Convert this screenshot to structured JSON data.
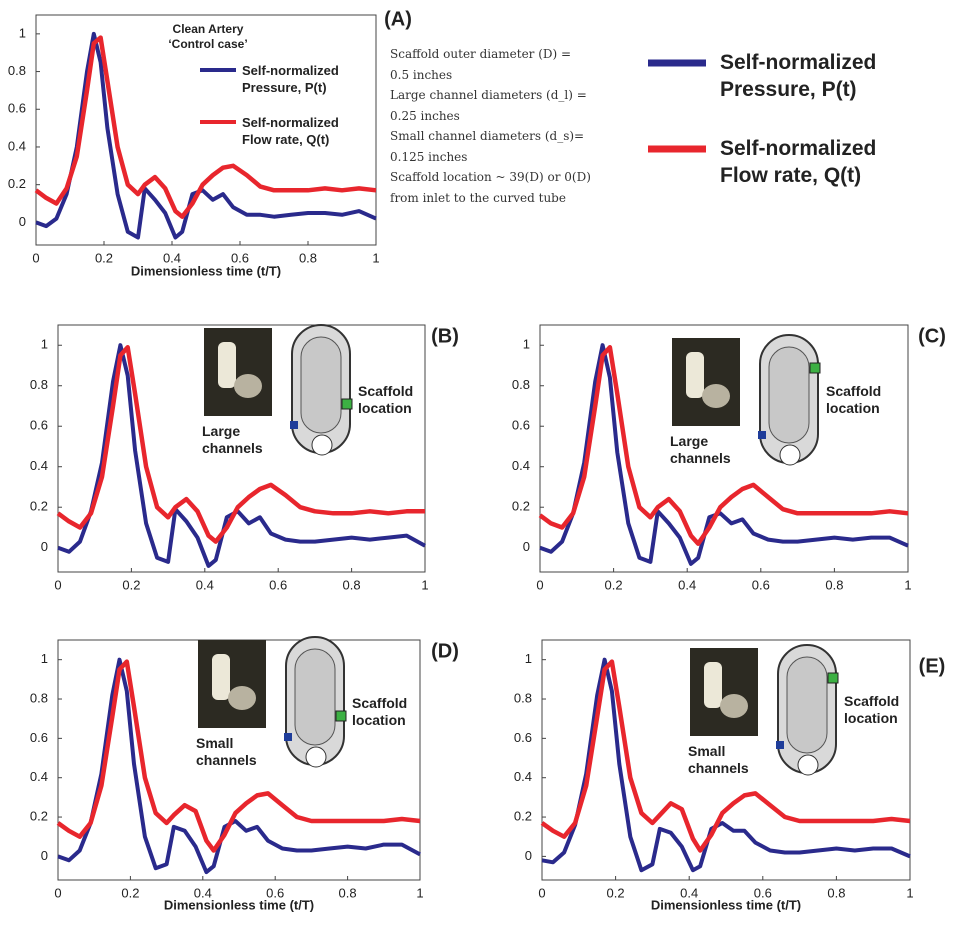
{
  "chart_data": [
    {
      "type": "line",
      "panel_label": "(A)",
      "title": "Clean Artery",
      "subtitle": "‘Control case’",
      "xlabel": "Dimensionless time (t/T)",
      "annotation": [
        "Scaffold outer diameter (D) =",
        "0.5 inches",
        "Large channel diameters (d_l) =",
        "0.25 inches",
        "Small channel diameters (d_s)=",
        "0.125 inches",
        "Scaffold location ~ 39(D)  or 0(D)",
        "from inlet to the curved tube"
      ],
      "legend": "upper right",
      "xlim": [
        0,
        1
      ],
      "ylim": [
        -0.12,
        1.1
      ],
      "xticks": [
        0,
        0.2,
        0.4,
        0.6,
        0.8,
        1
      ],
      "yticks": [
        0,
        0.2,
        0.4,
        0.6,
        0.8,
        1
      ],
      "x": [
        0,
        0.03,
        0.06,
        0.09,
        0.12,
        0.15,
        0.17,
        0.19,
        0.21,
        0.24,
        0.27,
        0.3,
        0.32,
        0.35,
        0.38,
        0.41,
        0.43,
        0.46,
        0.49,
        0.52,
        0.55,
        0.58,
        0.62,
        0.66,
        0.7,
        0.75,
        0.8,
        0.85,
        0.9,
        0.95,
        1
      ],
      "series": [
        {
          "name": "Self-normalized Pressure, P(t)",
          "color": "#2a2a8c",
          "values": [
            0,
            -0.02,
            0.02,
            0.15,
            0.4,
            0.8,
            1,
            0.85,
            0.5,
            0.15,
            -0.05,
            -0.08,
            0.18,
            0.12,
            0.05,
            -0.08,
            -0.05,
            0.15,
            0.17,
            0.12,
            0.15,
            0.08,
            0.04,
            0.04,
            0.03,
            0.04,
            0.05,
            0.05,
            0.04,
            0.06,
            0.02
          ]
        },
        {
          "name": "Self-normalized Flow rate, Q(t)",
          "color": "#e8262d",
          "values": [
            0.17,
            0.13,
            0.1,
            0.18,
            0.35,
            0.7,
            0.95,
            0.98,
            0.75,
            0.4,
            0.2,
            0.15,
            0.2,
            0.24,
            0.18,
            0.06,
            0.03,
            0.1,
            0.2,
            0.25,
            0.29,
            0.3,
            0.25,
            0.19,
            0.17,
            0.17,
            0.17,
            0.18,
            0.17,
            0.18,
            0.17
          ]
        }
      ]
    },
    {
      "type": "line",
      "panel_label": "(B)",
      "inset_labels": [
        "Large channels",
        "Scaffold location"
      ],
      "xlim": [
        0,
        1
      ],
      "ylim": [
        -0.12,
        1.1
      ],
      "xticks": [
        0,
        0.2,
        0.4,
        0.6,
        0.8,
        1
      ],
      "yticks": [
        0,
        0.2,
        0.4,
        0.6,
        0.8,
        1
      ],
      "x": [
        0,
        0.03,
        0.06,
        0.09,
        0.12,
        0.15,
        0.17,
        0.19,
        0.21,
        0.24,
        0.27,
        0.3,
        0.32,
        0.35,
        0.38,
        0.41,
        0.43,
        0.46,
        0.49,
        0.52,
        0.55,
        0.58,
        0.62,
        0.66,
        0.7,
        0.75,
        0.8,
        0.85,
        0.9,
        0.95,
        1
      ],
      "series": [
        {
          "name": "Self-normalized Pressure, P(t)",
          "color": "#2a2a8c",
          "values": [
            0,
            -0.02,
            0.03,
            0.18,
            0.42,
            0.82,
            1,
            0.85,
            0.48,
            0.12,
            -0.05,
            -0.07,
            0.19,
            0.13,
            0.05,
            -0.09,
            -0.06,
            0.15,
            0.18,
            0.12,
            0.15,
            0.07,
            0.04,
            0.03,
            0.03,
            0.04,
            0.05,
            0.04,
            0.05,
            0.06,
            0.01
          ]
        },
        {
          "name": "Self-normalized Flow rate, Q(t)",
          "color": "#e8262d",
          "values": [
            0.17,
            0.13,
            0.1,
            0.17,
            0.35,
            0.7,
            0.95,
            0.99,
            0.76,
            0.4,
            0.2,
            0.15,
            0.2,
            0.24,
            0.18,
            0.06,
            0.03,
            0.1,
            0.2,
            0.25,
            0.29,
            0.31,
            0.26,
            0.2,
            0.18,
            0.17,
            0.17,
            0.18,
            0.17,
            0.18,
            0.18
          ]
        }
      ]
    },
    {
      "type": "line",
      "panel_label": "(C)",
      "inset_labels": [
        "Large channels",
        "Scaffold location"
      ],
      "xlim": [
        0,
        1
      ],
      "ylim": [
        -0.12,
        1.1
      ],
      "xticks": [
        0,
        0.2,
        0.4,
        0.6,
        0.8,
        1
      ],
      "yticks": [
        0,
        0.2,
        0.4,
        0.6,
        0.8,
        1
      ],
      "x": [
        0,
        0.03,
        0.06,
        0.09,
        0.12,
        0.15,
        0.17,
        0.19,
        0.21,
        0.24,
        0.27,
        0.3,
        0.32,
        0.35,
        0.38,
        0.41,
        0.43,
        0.46,
        0.49,
        0.52,
        0.55,
        0.58,
        0.62,
        0.66,
        0.7,
        0.75,
        0.8,
        0.85,
        0.9,
        0.95,
        1
      ],
      "series": [
        {
          "name": "Self-normalized Pressure, P(t)",
          "color": "#2a2a8c",
          "values": [
            0,
            -0.02,
            0.03,
            0.17,
            0.42,
            0.82,
            1,
            0.84,
            0.47,
            0.12,
            -0.05,
            -0.07,
            0.18,
            0.12,
            0.05,
            -0.08,
            -0.05,
            0.15,
            0.17,
            0.12,
            0.14,
            0.07,
            0.04,
            0.03,
            0.03,
            0.04,
            0.05,
            0.04,
            0.05,
            0.05,
            0.01
          ]
        },
        {
          "name": "Self-normalized Flow rate, Q(t)",
          "color": "#e8262d",
          "values": [
            0.16,
            0.12,
            0.1,
            0.17,
            0.35,
            0.7,
            0.95,
            0.99,
            0.76,
            0.4,
            0.2,
            0.15,
            0.2,
            0.24,
            0.18,
            0.06,
            0.02,
            0.1,
            0.2,
            0.25,
            0.29,
            0.31,
            0.25,
            0.19,
            0.17,
            0.17,
            0.17,
            0.17,
            0.17,
            0.18,
            0.17
          ]
        }
      ]
    },
    {
      "type": "line",
      "panel_label": "(D)",
      "inset_labels": [
        "Small channels",
        "Scaffold location"
      ],
      "xlabel": "Dimensionless time (t/T)",
      "xlim": [
        0,
        1
      ],
      "ylim": [
        -0.12,
        1.1
      ],
      "xticks": [
        0,
        0.2,
        0.4,
        0.6,
        0.8,
        1
      ],
      "yticks": [
        0,
        0.2,
        0.4,
        0.6,
        0.8,
        1
      ],
      "x": [
        0,
        0.03,
        0.06,
        0.09,
        0.12,
        0.15,
        0.17,
        0.19,
        0.21,
        0.24,
        0.27,
        0.3,
        0.32,
        0.35,
        0.38,
        0.41,
        0.43,
        0.46,
        0.49,
        0.52,
        0.55,
        0.58,
        0.62,
        0.66,
        0.7,
        0.75,
        0.8,
        0.85,
        0.9,
        0.95,
        1
      ],
      "series": [
        {
          "name": "Self-normalized Pressure, P(t)",
          "color": "#2a2a8c",
          "values": [
            0,
            -0.02,
            0.03,
            0.17,
            0.42,
            0.82,
            1,
            0.84,
            0.47,
            0.1,
            -0.06,
            -0.04,
            0.15,
            0.13,
            0.05,
            -0.08,
            -0.05,
            0.15,
            0.18,
            0.13,
            0.15,
            0.08,
            0.04,
            0.03,
            0.03,
            0.04,
            0.05,
            0.04,
            0.06,
            0.06,
            0.01
          ]
        },
        {
          "name": "Self-normalized Flow rate, Q(t)",
          "color": "#e8262d",
          "values": [
            0.17,
            0.13,
            0.1,
            0.17,
            0.36,
            0.71,
            0.95,
            0.99,
            0.76,
            0.4,
            0.22,
            0.17,
            0.21,
            0.26,
            0.23,
            0.08,
            0.03,
            0.11,
            0.22,
            0.27,
            0.31,
            0.32,
            0.26,
            0.2,
            0.18,
            0.18,
            0.18,
            0.18,
            0.18,
            0.19,
            0.18
          ]
        }
      ]
    },
    {
      "type": "line",
      "panel_label": "(E)",
      "inset_labels": [
        "Small channels",
        "Scaffold location"
      ],
      "xlabel": "Dimensionless time (t/T)",
      "xlim": [
        0,
        1
      ],
      "ylim": [
        -0.12,
        1.1
      ],
      "xticks": [
        0,
        0.2,
        0.4,
        0.6,
        0.8,
        1
      ],
      "yticks": [
        0,
        0.2,
        0.4,
        0.6,
        0.8,
        1
      ],
      "x": [
        0,
        0.03,
        0.06,
        0.09,
        0.12,
        0.15,
        0.17,
        0.19,
        0.21,
        0.24,
        0.27,
        0.3,
        0.32,
        0.35,
        0.38,
        0.41,
        0.43,
        0.46,
        0.49,
        0.52,
        0.55,
        0.58,
        0.62,
        0.66,
        0.7,
        0.75,
        0.8,
        0.85,
        0.9,
        0.95,
        1
      ],
      "series": [
        {
          "name": "Self-normalized Pressure, P(t)",
          "color": "#2a2a8c",
          "values": [
            -0.02,
            -0.03,
            0.02,
            0.16,
            0.42,
            0.82,
            1,
            0.84,
            0.47,
            0.1,
            -0.07,
            -0.04,
            0.14,
            0.12,
            0.05,
            -0.07,
            -0.05,
            0.14,
            0.17,
            0.13,
            0.13,
            0.07,
            0.03,
            0.02,
            0.02,
            0.03,
            0.04,
            0.03,
            0.04,
            0.04,
            0
          ]
        },
        {
          "name": "Self-normalized Flow rate, Q(t)",
          "color": "#e8262d",
          "values": [
            0.17,
            0.13,
            0.1,
            0.17,
            0.36,
            0.71,
            0.95,
            0.99,
            0.76,
            0.4,
            0.22,
            0.17,
            0.21,
            0.27,
            0.24,
            0.09,
            0.03,
            0.11,
            0.22,
            0.27,
            0.31,
            0.32,
            0.26,
            0.2,
            0.18,
            0.18,
            0.18,
            0.18,
            0.18,
            0.19,
            0.18
          ]
        }
      ]
    }
  ]
}
